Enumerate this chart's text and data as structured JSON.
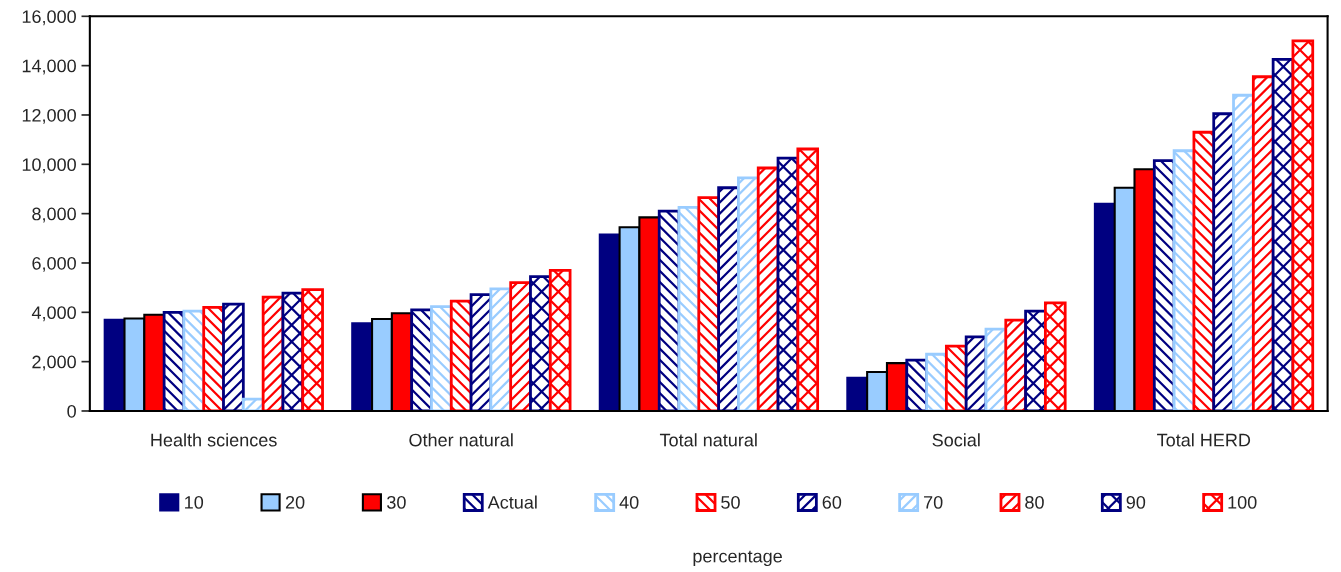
{
  "chart_data": {
    "type": "bar",
    "categories": [
      "Health sciences",
      "Other natural",
      "Total natural",
      "Social",
      "Total HERD"
    ],
    "series": [
      {
        "name": "10",
        "color": "#000080",
        "values": [
          3700,
          3550,
          7150,
          1350,
          8400
        ]
      },
      {
        "name": "20",
        "color": "#99ccff",
        "values": [
          3750,
          3730,
          7450,
          1580,
          9050
        ]
      },
      {
        "name": "30",
        "color": "#ff0000",
        "values": [
          3900,
          3960,
          7850,
          1940,
          9800
        ]
      },
      {
        "name": "Actual",
        "color": "#000080",
        "values": [
          4000,
          4100,
          8100,
          2060,
          10150
        ]
      },
      {
        "name": "40",
        "color": "#99ccff",
        "values": [
          4050,
          4230,
          8250,
          2300,
          10550
        ]
      },
      {
        "name": "50",
        "color": "#ff0000",
        "values": [
          4200,
          4450,
          8650,
          2630,
          11300
        ]
      },
      {
        "name": "60",
        "color": "#000080",
        "values": [
          4330,
          4720,
          9050,
          3000,
          12050
        ]
      },
      {
        "name": "70",
        "color": "#99ccff",
        "values": [
          480,
          4950,
          9450,
          3320,
          12800
        ]
      },
      {
        "name": "80",
        "color": "#ff0000",
        "values": [
          4620,
          5200,
          9850,
          3680,
          13550
        ]
      },
      {
        "name": "90",
        "color": "#000080",
        "values": [
          4780,
          5450,
          10250,
          4050,
          14250
        ]
      },
      {
        "name": "100",
        "color": "#ff0000",
        "values": [
          4920,
          5700,
          10620,
          4380,
          15000
        ]
      }
    ],
    "ylim": [
      0,
      16000
    ],
    "yticks": [
      0,
      {
        "value": 2000,
        "label": "2,000"
      },
      {
        "value": 4000,
        "label": "4,000"
      },
      {
        "value": 6000,
        "label": "6,000"
      },
      {
        "value": 8000,
        "label": "8,000"
      },
      {
        "value": 10000,
        "label": "10,000"
      },
      {
        "value": 12000,
        "label": "12,000"
      },
      {
        "value": 14000,
        "label": "14,000"
      },
      {
        "value": 16000,
        "label": "16,000"
      }
    ],
    "legend": "bottom",
    "legend_title": "percentage",
    "grid": false
  }
}
